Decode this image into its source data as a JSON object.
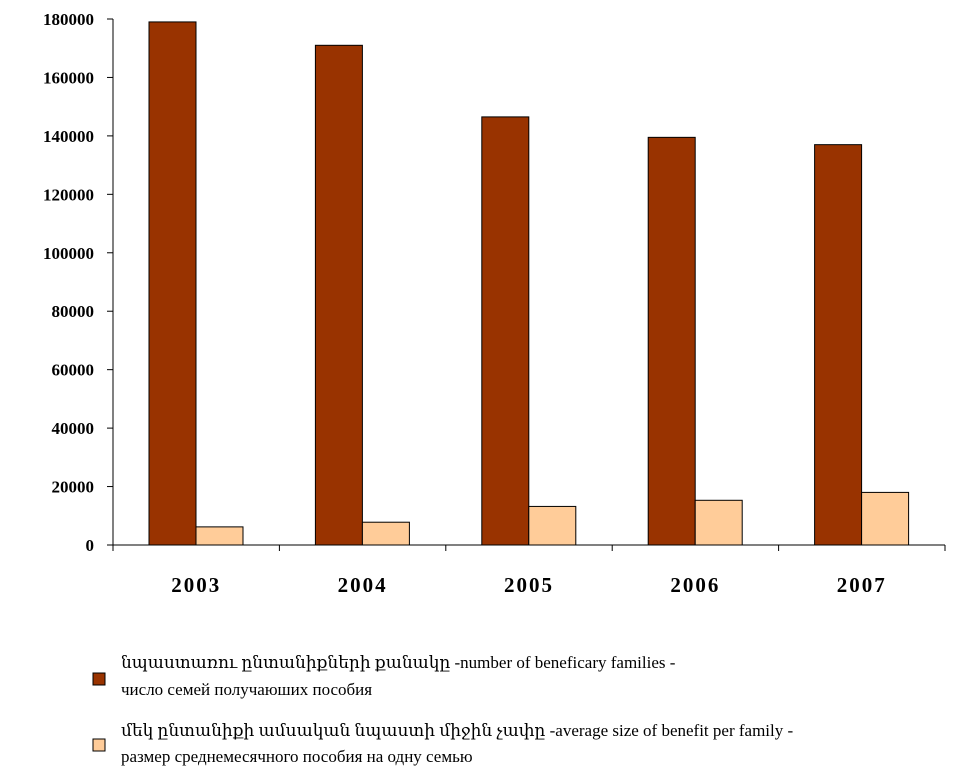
{
  "chart_data": {
    "type": "bar",
    "categories": [
      "2003",
      "2004",
      "2005",
      "2006",
      "2007"
    ],
    "series": [
      {
        "name_line1": "նպաստառու ընտանիքների քանակը -number of beneficary families -",
        "name_line2": "число семей получаюших пособия",
        "color": "#993300",
        "values": [
          179000,
          171000,
          146500,
          139500,
          137000
        ]
      },
      {
        "name_line1": "մեկ ընտանիքի ամսական նպաստի միջին չափը -average size of  benefit per family -",
        "name_line2": "размер среднемесячного пособия на одну семью",
        "color": "#ffcc99",
        "values": [
          6200,
          7800,
          13200,
          15300,
          18000
        ]
      }
    ],
    "ylim": [
      0,
      180000
    ],
    "yticks": [
      "0",
      "20000",
      "40000",
      "60000",
      "80000",
      "100000",
      "120000",
      "140000",
      "160000",
      "180000"
    ],
    "grid": false,
    "legend_position": "bottom"
  }
}
